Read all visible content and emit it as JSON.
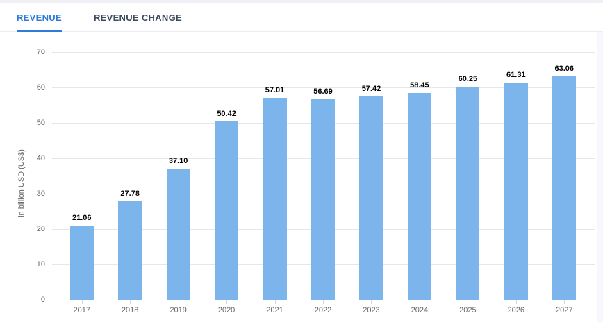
{
  "tabs": [
    {
      "label": "REVENUE",
      "active": true
    },
    {
      "label": "REVENUE CHANGE",
      "active": false
    }
  ],
  "colors": {
    "tab_active": "#2e7cd7",
    "tab_inactive": "#3d4a5c",
    "tab_underline": "#2e7cd7",
    "bar": "#7cb5ec",
    "gridline": "#e6e6e6",
    "axis_line": "#ccd6eb",
    "axis_text": "#666666",
    "data_label": "#000000"
  },
  "chart_data": {
    "type": "bar",
    "title": "",
    "categories": [
      "2017",
      "2018",
      "2019",
      "2020",
      "2021",
      "2022",
      "2023",
      "2024",
      "2025",
      "2026",
      "2027"
    ],
    "values": [
      21.06,
      27.78,
      37.1,
      50.42,
      57.01,
      56.69,
      57.42,
      58.45,
      60.25,
      61.31,
      63.06
    ],
    "data_labels": [
      "21.06",
      "27.78",
      "37.10",
      "50.42",
      "57.01",
      "56.69",
      "57.42",
      "58.45",
      "60.25",
      "61.31",
      "63.06"
    ],
    "xlabel": "",
    "ylabel": "in billion USD (US$)",
    "ylim": [
      0,
      70
    ],
    "ytick_interval": 10,
    "ytick_labels": [
      "0",
      "10",
      "20",
      "30",
      "40",
      "50",
      "60",
      "70"
    ],
    "grid": true,
    "legend_position": "none"
  }
}
